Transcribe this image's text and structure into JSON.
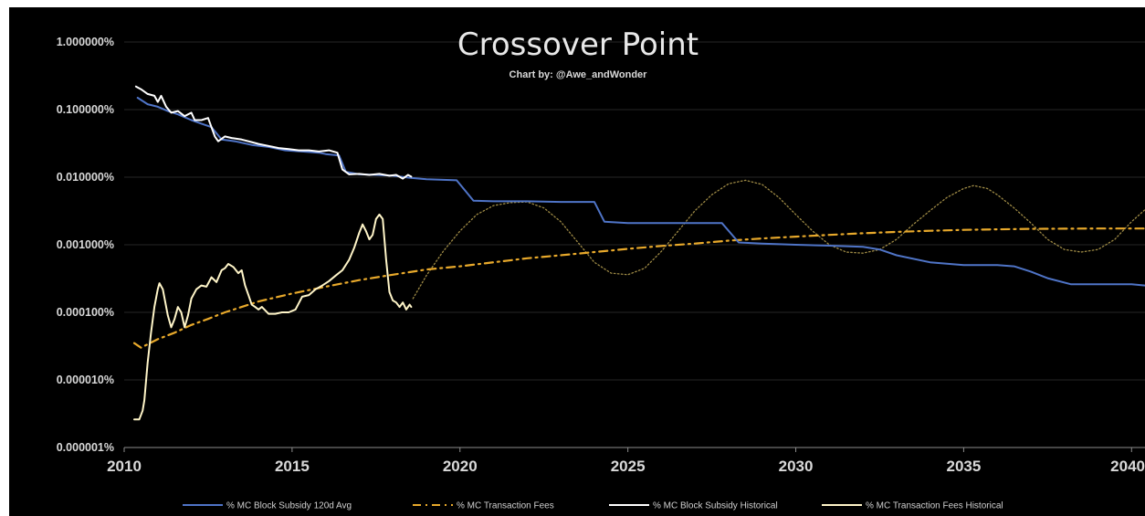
{
  "chart_data": {
    "type": "line",
    "title": "Crossover Point",
    "subtitle": "Chart by: @Awe_andWonder",
    "xlabel": "",
    "ylabel": "",
    "xlim": [
      2010,
      2040.4
    ],
    "ylim": [
      1e-06,
      1.0
    ],
    "y_scale": "log",
    "grid": true,
    "legend_position": "bottom",
    "x_ticks": [
      "2010",
      "2015",
      "2020",
      "2025",
      "2030",
      "2035",
      "2040"
    ],
    "y_ticks": [
      "1.000000%",
      "0.100000%",
      "0.010000%",
      "0.001000%",
      "0.000100%",
      "0.000010%",
      "0.000001%"
    ],
    "series": [
      {
        "name": "% MC Block Subsidy 120d Avg",
        "color": "#4f74c7",
        "style": "solid",
        "points": [
          [
            2010.4,
            0.15
          ],
          [
            2010.7,
            0.12
          ],
          [
            2011.0,
            0.11
          ],
          [
            2011.3,
            0.095
          ],
          [
            2011.6,
            0.085
          ],
          [
            2012.0,
            0.07
          ],
          [
            2012.3,
            0.062
          ],
          [
            2012.6,
            0.055
          ],
          [
            2012.9,
            0.036
          ],
          [
            2013.3,
            0.034
          ],
          [
            2013.8,
            0.03
          ],
          [
            2014.3,
            0.028
          ],
          [
            2014.8,
            0.025
          ],
          [
            2015.3,
            0.024
          ],
          [
            2015.8,
            0.023
          ],
          [
            2016.0,
            0.022
          ],
          [
            2016.4,
            0.021
          ],
          [
            2016.6,
            0.012
          ],
          [
            2017.0,
            0.011
          ],
          [
            2017.5,
            0.0108
          ],
          [
            2018.0,
            0.0105
          ],
          [
            2018.5,
            0.0098
          ],
          [
            2019.0,
            0.0093
          ],
          [
            2019.6,
            0.0091
          ],
          [
            2019.9,
            0.009
          ],
          [
            2020.4,
            0.0045
          ],
          [
            2021.0,
            0.0044
          ],
          [
            2022.0,
            0.0044
          ],
          [
            2023.0,
            0.0043
          ],
          [
            2024.0,
            0.0043
          ],
          [
            2024.3,
            0.0022
          ],
          [
            2025.0,
            0.0021
          ],
          [
            2026.0,
            0.0021
          ],
          [
            2027.0,
            0.0021
          ],
          [
            2027.8,
            0.0021
          ],
          [
            2028.3,
            0.00108
          ],
          [
            2029.0,
            0.00104
          ],
          [
            2030.0,
            0.001
          ],
          [
            2031.0,
            0.00097
          ],
          [
            2032.0,
            0.00093
          ],
          [
            2032.5,
            0.00085
          ],
          [
            2033.0,
            0.0007
          ],
          [
            2034.0,
            0.00055
          ],
          [
            2035.0,
            0.0005
          ],
          [
            2036.0,
            0.0005
          ],
          [
            2036.5,
            0.00048
          ],
          [
            2037.0,
            0.0004
          ],
          [
            2037.5,
            0.00032
          ],
          [
            2038.2,
            0.00026
          ],
          [
            2039.0,
            0.00026
          ],
          [
            2040.0,
            0.00026
          ],
          [
            2040.4,
            0.00025
          ]
        ]
      },
      {
        "name": "% MC Transaction Fees",
        "color": "#e8a92b",
        "style": "dash-dot",
        "points": [
          [
            2010.3,
            3.5e-05
          ],
          [
            2010.5,
            3e-05
          ],
          [
            2011.0,
            4e-05
          ],
          [
            2011.5,
            5e-05
          ],
          [
            2012.0,
            6.5e-05
          ],
          [
            2012.5,
            8e-05
          ],
          [
            2013.0,
            0.0001
          ],
          [
            2013.5,
            0.00012
          ],
          [
            2014.0,
            0.000145
          ],
          [
            2015.0,
            0.00019
          ],
          [
            2016.0,
            0.00024
          ],
          [
            2017.0,
            0.0003
          ],
          [
            2018.0,
            0.00036
          ],
          [
            2019.0,
            0.00043
          ],
          [
            2020.0,
            0.00048
          ],
          [
            2021.0,
            0.00055
          ],
          [
            2022.0,
            0.00063
          ],
          [
            2023.0,
            0.0007
          ],
          [
            2024.0,
            0.00078
          ],
          [
            2025.0,
            0.00087
          ],
          [
            2026.0,
            0.00096
          ],
          [
            2027.0,
            0.00104
          ],
          [
            2028.0,
            0.00115
          ],
          [
            2029.0,
            0.00124
          ],
          [
            2030.0,
            0.00132
          ],
          [
            2031.0,
            0.0014
          ],
          [
            2032.0,
            0.00148
          ],
          [
            2033.0,
            0.00155
          ],
          [
            2034.0,
            0.00161
          ],
          [
            2035.0,
            0.00166
          ],
          [
            2036.0,
            0.00169
          ],
          [
            2037.0,
            0.00172
          ],
          [
            2038.0,
            0.00173
          ],
          [
            2039.0,
            0.00174
          ],
          [
            2040.0,
            0.00174
          ],
          [
            2040.4,
            0.00174
          ]
        ]
      },
      {
        "name": "% MC Block Subsidy Historical",
        "color": "#ffffff",
        "style": "solid",
        "points": [
          [
            2010.35,
            0.22
          ],
          [
            2010.5,
            0.2
          ],
          [
            2010.7,
            0.17
          ],
          [
            2010.9,
            0.16
          ],
          [
            2011.0,
            0.13
          ],
          [
            2011.1,
            0.16
          ],
          [
            2011.25,
            0.11
          ],
          [
            2011.4,
            0.09
          ],
          [
            2011.6,
            0.095
          ],
          [
            2011.8,
            0.08
          ],
          [
            2012.0,
            0.09
          ],
          [
            2012.1,
            0.07
          ],
          [
            2012.3,
            0.07
          ],
          [
            2012.5,
            0.075
          ],
          [
            2012.7,
            0.04
          ],
          [
            2012.8,
            0.034
          ],
          [
            2013.0,
            0.04
          ],
          [
            2013.2,
            0.038
          ],
          [
            2013.5,
            0.036
          ],
          [
            2013.8,
            0.033
          ],
          [
            2014.0,
            0.031
          ],
          [
            2014.3,
            0.029
          ],
          [
            2014.6,
            0.027
          ],
          [
            2014.9,
            0.026
          ],
          [
            2015.2,
            0.025
          ],
          [
            2015.5,
            0.025
          ],
          [
            2015.8,
            0.024
          ],
          [
            2016.1,
            0.025
          ],
          [
            2016.35,
            0.023
          ],
          [
            2016.5,
            0.013
          ],
          [
            2016.7,
            0.011
          ],
          [
            2017.0,
            0.0112
          ],
          [
            2017.3,
            0.0108
          ],
          [
            2017.6,
            0.0112
          ],
          [
            2017.9,
            0.0105
          ],
          [
            2018.1,
            0.0108
          ],
          [
            2018.3,
            0.0095
          ],
          [
            2018.45,
            0.0108
          ],
          [
            2018.55,
            0.0102
          ]
        ]
      },
      {
        "name": "% MC Transaction Fees Historical",
        "color": "#fff5c8",
        "style": "solid",
        "points": [
          [
            2010.3,
            2.6e-06
          ],
          [
            2010.45,
            2.6e-06
          ],
          [
            2010.55,
            3.5e-06
          ],
          [
            2010.6,
            5e-06
          ],
          [
            2010.7,
            1.8e-05
          ],
          [
            2010.8,
            5e-05
          ],
          [
            2010.9,
            0.00012
          ],
          [
            2011.0,
            0.00022
          ],
          [
            2011.05,
            0.00027
          ],
          [
            2011.15,
            0.00022
          ],
          [
            2011.3,
            9e-05
          ],
          [
            2011.4,
            6e-05
          ],
          [
            2011.5,
            8e-05
          ],
          [
            2011.6,
            0.00012
          ],
          [
            2011.7,
            0.0001
          ],
          [
            2011.8,
            6e-05
          ],
          [
            2011.9,
            9e-05
          ],
          [
            2012.0,
            0.00016
          ],
          [
            2012.15,
            0.00022
          ],
          [
            2012.3,
            0.00025
          ],
          [
            2012.45,
            0.00024
          ],
          [
            2012.6,
            0.00033
          ],
          [
            2012.75,
            0.00028
          ],
          [
            2012.9,
            0.00042
          ],
          [
            2013.0,
            0.00045
          ],
          [
            2013.1,
            0.00052
          ],
          [
            2013.25,
            0.00047
          ],
          [
            2013.4,
            0.00038
          ],
          [
            2013.5,
            0.00042
          ],
          [
            2013.6,
            0.00025
          ],
          [
            2013.7,
            0.00018
          ],
          [
            2013.8,
            0.00013
          ],
          [
            2013.9,
            0.00012
          ],
          [
            2014.0,
            0.00011
          ],
          [
            2014.1,
            0.00012
          ],
          [
            2014.3,
            9.5e-05
          ],
          [
            2014.5,
            9.5e-05
          ],
          [
            2014.7,
            0.0001
          ],
          [
            2014.9,
            0.0001
          ],
          [
            2015.1,
            0.00011
          ],
          [
            2015.3,
            0.00017
          ],
          [
            2015.5,
            0.00018
          ],
          [
            2015.7,
            0.00022
          ],
          [
            2015.9,
            0.00025
          ],
          [
            2016.1,
            0.00029
          ],
          [
            2016.3,
            0.00035
          ],
          [
            2016.5,
            0.00042
          ],
          [
            2016.7,
            0.0006
          ],
          [
            2016.85,
            0.0009
          ],
          [
            2017.0,
            0.0015
          ],
          [
            2017.1,
            0.002
          ],
          [
            2017.2,
            0.0016
          ],
          [
            2017.3,
            0.0012
          ],
          [
            2017.4,
            0.0014
          ],
          [
            2017.5,
            0.0024
          ],
          [
            2017.6,
            0.0028
          ],
          [
            2017.7,
            0.0024
          ],
          [
            2017.8,
            0.0006
          ],
          [
            2017.9,
            0.0002
          ],
          [
            2018.0,
            0.00015
          ],
          [
            2018.1,
            0.00014
          ],
          [
            2018.2,
            0.00012
          ],
          [
            2018.3,
            0.00014
          ],
          [
            2018.4,
            0.00011
          ],
          [
            2018.5,
            0.00013
          ],
          [
            2018.55,
            0.00012
          ]
        ]
      },
      {
        "name": "",
        "color": "#9e8a45",
        "style": "dotted",
        "points": [
          [
            2018.6,
            0.00016
          ],
          [
            2019.0,
            0.00035
          ],
          [
            2019.5,
            0.0008
          ],
          [
            2020.0,
            0.0016
          ],
          [
            2020.5,
            0.0028
          ],
          [
            2021.0,
            0.0038
          ],
          [
            2021.5,
            0.0042
          ],
          [
            2022.0,
            0.0043
          ],
          [
            2022.5,
            0.0035
          ],
          [
            2023.0,
            0.0022
          ],
          [
            2023.5,
            0.0011
          ],
          [
            2024.0,
            0.00055
          ],
          [
            2024.5,
            0.00038
          ],
          [
            2025.0,
            0.00036
          ],
          [
            2025.5,
            0.00045
          ],
          [
            2026.0,
            0.0008
          ],
          [
            2026.5,
            0.0016
          ],
          [
            2027.0,
            0.0032
          ],
          [
            2027.5,
            0.0055
          ],
          [
            2028.0,
            0.008
          ],
          [
            2028.5,
            0.009
          ],
          [
            2029.0,
            0.0078
          ],
          [
            2029.5,
            0.005
          ],
          [
            2030.0,
            0.0028
          ],
          [
            2030.5,
            0.0016
          ],
          [
            2031.0,
            0.001
          ],
          [
            2031.5,
            0.00078
          ],
          [
            2032.0,
            0.00075
          ],
          [
            2032.5,
            0.00085
          ],
          [
            2033.0,
            0.0012
          ],
          [
            2033.5,
            0.002
          ],
          [
            2034.0,
            0.0032
          ],
          [
            2034.5,
            0.005
          ],
          [
            2035.0,
            0.0068
          ],
          [
            2035.3,
            0.0075
          ],
          [
            2035.7,
            0.0068
          ],
          [
            2036.0,
            0.0055
          ],
          [
            2036.5,
            0.0035
          ],
          [
            2037.0,
            0.0021
          ],
          [
            2037.5,
            0.0012
          ],
          [
            2038.0,
            0.00085
          ],
          [
            2038.5,
            0.00078
          ],
          [
            2039.0,
            0.00085
          ],
          [
            2039.5,
            0.0012
          ],
          [
            2040.0,
            0.0022
          ],
          [
            2040.4,
            0.0033
          ]
        ]
      }
    ]
  }
}
